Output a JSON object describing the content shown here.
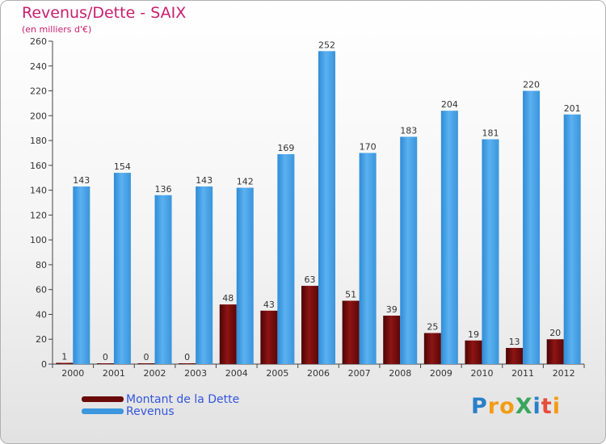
{
  "title": "Revenus/Dette - SAIX",
  "subtitle": "(en milliers d'€)",
  "logo": {
    "text": "ProXiti",
    "letter_colors": [
      "#2a7fc8",
      "#f39c12",
      "#f39c12",
      "#3ba55c",
      "#2a7fc8",
      "#e74c3c",
      "#f39c12"
    ]
  },
  "colors": {
    "dette": "#7a0c0c",
    "revenus": "#4aa3e8",
    "title": "#c81e6e",
    "legend_text": "#3355dd"
  },
  "legend": [
    {
      "label": "Montant de la Dette",
      "color": "#6b0a0a"
    },
    {
      "label": "Revenus",
      "color": "#3b97de"
    }
  ],
  "chart_data": {
    "type": "bar",
    "title": "Revenus/Dette - SAIX",
    "subtitle": "(en milliers d'€)",
    "xlabel": "",
    "ylabel": "",
    "ylim": [
      0,
      260
    ],
    "yticks": [
      0,
      20,
      40,
      60,
      80,
      100,
      120,
      140,
      160,
      180,
      200,
      220,
      240,
      260
    ],
    "grid": false,
    "legend_position": "bottom-left",
    "categories": [
      "2000",
      "2001",
      "2002",
      "2003",
      "2004",
      "2005",
      "2006",
      "2007",
      "2008",
      "2009",
      "2010",
      "2011",
      "2012"
    ],
    "series": [
      {
        "name": "Montant de la Dette",
        "values": [
          1,
          0,
          0,
          0,
          48,
          43,
          63,
          51,
          39,
          25,
          19,
          13,
          20
        ]
      },
      {
        "name": "Revenus",
        "values": [
          143,
          154,
          136,
          143,
          142,
          169,
          252,
          170,
          183,
          204,
          181,
          220,
          201
        ]
      }
    ]
  }
}
